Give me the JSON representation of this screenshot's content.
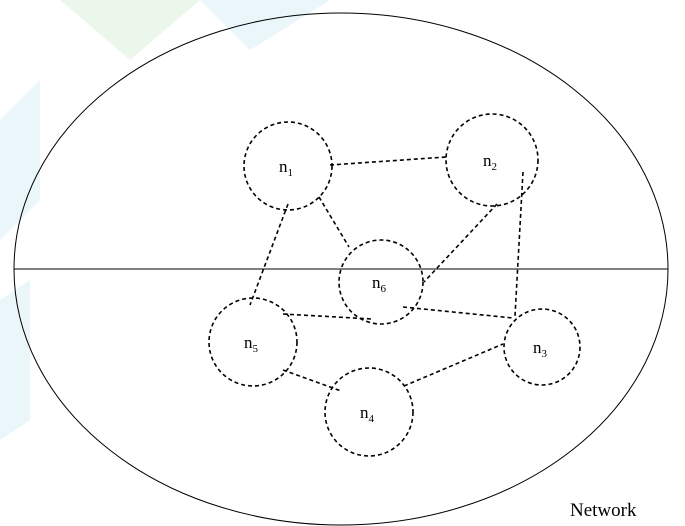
{
  "nodes": [
    {
      "id": "n1",
      "base": "n",
      "sub": "1"
    },
    {
      "id": "n2",
      "base": "n",
      "sub": "2"
    },
    {
      "id": "n3",
      "base": "n",
      "sub": "3"
    },
    {
      "id": "n4",
      "base": "n",
      "sub": "4"
    },
    {
      "id": "n5",
      "base": "n",
      "sub": "5"
    },
    {
      "id": "n6",
      "base": "n",
      "sub": "6"
    }
  ],
  "edges": [
    [
      "n1",
      "n2"
    ],
    [
      "n1",
      "n6"
    ],
    [
      "n1",
      "n5"
    ],
    [
      "n2",
      "n6"
    ],
    [
      "n2",
      "n3"
    ],
    [
      "n6",
      "n3"
    ],
    [
      "n5",
      "n6"
    ],
    [
      "n5",
      "n4"
    ],
    [
      "n4",
      "n3"
    ]
  ],
  "caption": "Network",
  "colors": {
    "watermark_blue": "#d9eef6",
    "watermark_green": "#dff2df",
    "stroke": "#000000"
  }
}
